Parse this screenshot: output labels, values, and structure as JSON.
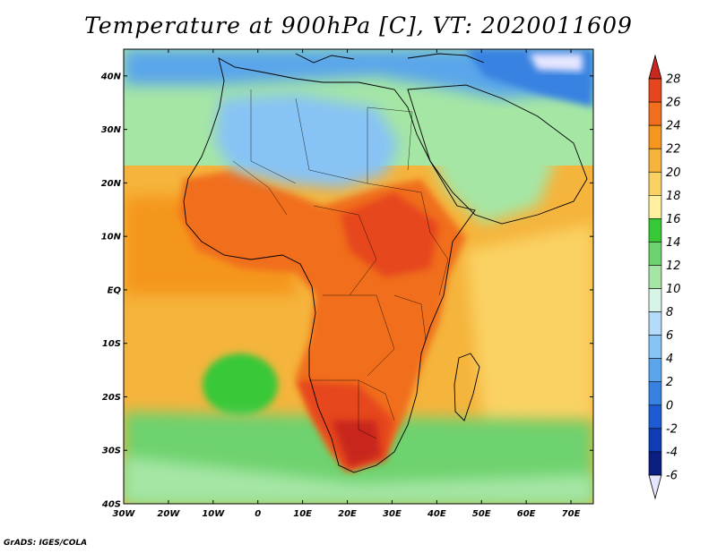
{
  "title": "Temperature at 900hPa [C], VT: 2020011609",
  "footer": "GrADS: IGES/COLA",
  "map": {
    "lon_range": [
      -30,
      75
    ],
    "lat_range": [
      -40,
      45
    ],
    "x_ticks": [
      "30W",
      "20W",
      "10W",
      "0",
      "10E",
      "20E",
      "30E",
      "40E",
      "50E",
      "60E",
      "70E"
    ],
    "y_ticks": [
      "40N",
      "30N",
      "20N",
      "10N",
      "EQ",
      "10S",
      "20S",
      "30S",
      "40S"
    ]
  },
  "colorbar": {
    "labels": [
      "28",
      "26",
      "24",
      "22",
      "20",
      "18",
      "16",
      "14",
      "12",
      "10",
      "8",
      "6",
      "4",
      "2",
      "0",
      "-2",
      "-4",
      "-6"
    ],
    "colors": [
      "#c8281e",
      "#e6461e",
      "#f06e1e",
      "#f5961e",
      "#f5b43c",
      "#fad264",
      "#fff0a0",
      "#37c837",
      "#6ed26e",
      "#a5e6a5",
      "#d7f5e6",
      "#b4dcfa",
      "#87c3f5",
      "#5aa5eb",
      "#3782e1",
      "#1e5ad2",
      "#0f3cb4",
      "#0a1e82",
      "#e6e6ff"
    ]
  },
  "regions": [
    {
      "name": "ocean-south-warm",
      "color": "#f5b43c"
    },
    {
      "name": "africa-land-warm",
      "color": "#f06e1e"
    },
    {
      "name": "sahara-cool",
      "color": "#87c3f5"
    },
    {
      "name": "mediterranean-cold",
      "color": "#5aa5eb"
    },
    {
      "name": "europe-cold",
      "color": "#3782e1"
    },
    {
      "name": "southern-ocean-cool",
      "color": "#6ed26e"
    }
  ]
}
